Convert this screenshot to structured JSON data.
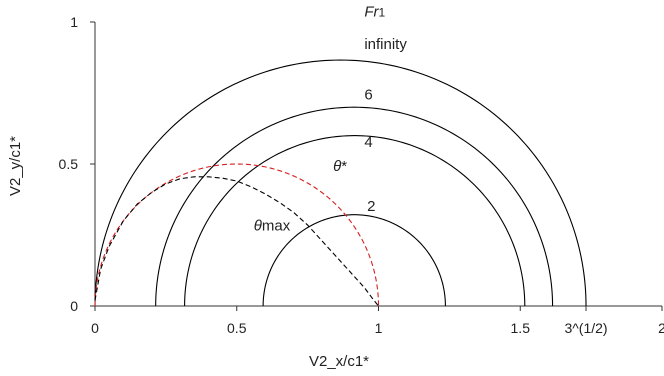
{
  "chart_data": {
    "type": "line",
    "xlabel": "V2_x/c1*",
    "ylabel": "V2_y/c1*",
    "xlim": [
      0,
      2
    ],
    "ylim": [
      0,
      1
    ],
    "x_ticks": [
      {
        "value": 0,
        "label": "0"
      },
      {
        "value": 0.5,
        "label": "0.5"
      },
      {
        "value": 1,
        "label": "1"
      },
      {
        "value": 1.5,
        "label": "1.5"
      },
      {
        "value": 1.732,
        "label": "3^(1/2)"
      },
      {
        "value": 2,
        "label": "2"
      }
    ],
    "y_ticks": [
      {
        "value": 0,
        "label": "0"
      },
      {
        "value": 0.5,
        "label": "0.5"
      },
      {
        "value": 1,
        "label": "1"
      }
    ],
    "legend_title": "Fr1",
    "series": [
      {
        "name": "infinity",
        "kind": "semicircle",
        "x_start": 0.0,
        "x_end": 1.732,
        "color": "#000000",
        "dash": false,
        "label_x": 0.95,
        "label_y": 0.905
      },
      {
        "name": "6",
        "kind": "semicircle",
        "x_start": 0.214,
        "x_end": 1.614,
        "color": "#000000",
        "dash": false,
        "label_x": 0.95,
        "label_y": 0.727
      },
      {
        "name": "4",
        "kind": "semicircle",
        "x_start": 0.316,
        "x_end": 1.516,
        "color": "#000000",
        "dash": false,
        "label_x": 0.95,
        "label_y": 0.56
      },
      {
        "name": "2",
        "kind": "semicircle",
        "x_start": 0.593,
        "x_end": 1.236,
        "color": "#000000",
        "dash": false,
        "label_x": 0.96,
        "label_y": 0.335
      },
      {
        "name": "θ*",
        "kind": "semicircle",
        "x_start": 0.0,
        "x_end": 1.0,
        "color": "#d62020",
        "dash": true,
        "label_x": 0.84,
        "label_y": 0.475
      },
      {
        "name": "θmax",
        "kind": "curve",
        "color": "#000000",
        "dash": true,
        "label_x": 0.56,
        "label_y": 0.265,
        "x": [
          0.0,
          0.02,
          0.05,
          0.1,
          0.15,
          0.2,
          0.25,
          0.3,
          0.35,
          0.4,
          0.45,
          0.5,
          0.55,
          0.6,
          0.65,
          0.7,
          0.75,
          0.8,
          0.85,
          0.9,
          0.95,
          0.98,
          1.0
        ],
        "y": [
          0.02,
          0.13,
          0.21,
          0.3,
          0.36,
          0.4,
          0.43,
          0.448,
          0.455,
          0.455,
          0.45,
          0.44,
          0.42,
          0.395,
          0.365,
          0.33,
          0.285,
          0.23,
          0.175,
          0.12,
          0.065,
          0.025,
          0.0
        ]
      }
    ]
  }
}
